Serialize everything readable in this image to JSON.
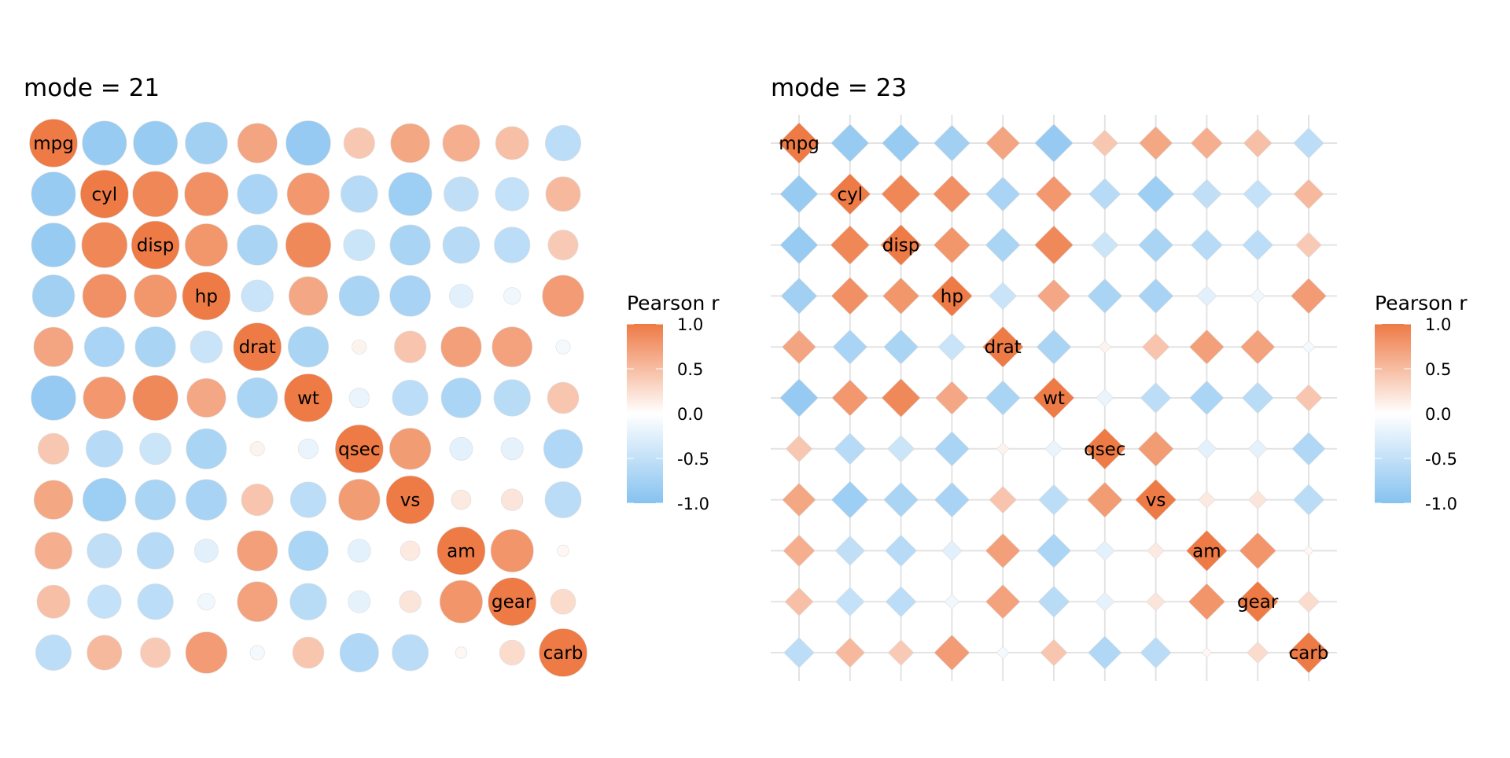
{
  "chart_data": [
    {
      "type": "heatmap",
      "title": "mode = 21",
      "marker": "circle",
      "variables": [
        "mpg",
        "cyl",
        "disp",
        "hp",
        "drat",
        "wt",
        "qsec",
        "vs",
        "am",
        "gear",
        "carb"
      ],
      "legend": {
        "title": "Pearson r",
        "ticks": [
          "1.0",
          "0.5",
          "0.0",
          "-0.5",
          "-1.0"
        ],
        "tick_values": [
          1,
          0.5,
          0,
          -0.5,
          -1
        ],
        "placement": "right"
      },
      "grid": false
    },
    {
      "type": "heatmap",
      "title": "mode = 23",
      "marker": "diamond",
      "variables": [
        "mpg",
        "cyl",
        "disp",
        "hp",
        "drat",
        "wt",
        "qsec",
        "vs",
        "am",
        "gear",
        "carb"
      ],
      "legend": {
        "title": "Pearson r",
        "ticks": [
          "1.0",
          "0.5",
          "0.0",
          "-0.5",
          "-1.0"
        ],
        "tick_values": [
          1,
          0.5,
          0,
          -0.5,
          -1
        ],
        "placement": "right"
      },
      "grid": true
    }
  ],
  "matrix": [
    [
      1.0,
      -0.852,
      -0.848,
      -0.776,
      0.681,
      -0.868,
      0.419,
      0.664,
      0.6,
      0.48,
      -0.551
    ],
    [
      -0.852,
      1.0,
      0.902,
      0.832,
      -0.7,
      0.782,
      -0.591,
      -0.811,
      -0.523,
      -0.493,
      0.527
    ],
    [
      -0.848,
      0.902,
      1.0,
      0.791,
      -0.71,
      0.888,
      -0.434,
      -0.71,
      -0.591,
      -0.556,
      0.395
    ],
    [
      -0.776,
      0.832,
      0.791,
      1.0,
      -0.449,
      0.659,
      -0.708,
      -0.723,
      -0.243,
      -0.126,
      0.75
    ],
    [
      0.681,
      -0.7,
      -0.71,
      -0.449,
      1.0,
      -0.712,
      0.091,
      0.44,
      0.713,
      0.7,
      -0.091
    ],
    [
      -0.868,
      0.782,
      0.888,
      0.659,
      -0.712,
      1.0,
      -0.175,
      -0.555,
      -0.692,
      -0.583,
      0.428
    ],
    [
      0.419,
      -0.591,
      -0.434,
      -0.708,
      0.091,
      -0.175,
      1.0,
      0.745,
      -0.23,
      -0.213,
      -0.656
    ],
    [
      0.664,
      -0.811,
      -0.71,
      -0.723,
      0.44,
      -0.555,
      0.745,
      1.0,
      0.168,
      0.206,
      -0.57
    ],
    [
      0.6,
      -0.523,
      -0.591,
      -0.243,
      0.713,
      -0.692,
      -0.23,
      0.168,
      1.0,
      0.794,
      0.058
    ],
    [
      0.48,
      -0.493,
      -0.556,
      -0.126,
      0.7,
      -0.583,
      -0.213,
      0.206,
      0.794,
      1.0,
      0.274
    ],
    [
      -0.551,
      0.527,
      0.395,
      0.75,
      -0.091,
      0.428,
      -0.656,
      -0.57,
      0.058,
      0.274,
      1.0
    ]
  ],
  "colors": {
    "negative": "#86C2F0",
    "zero": "#FFFFFF",
    "positive": "#EE7A45",
    "grid": "#E3E3E3"
  }
}
